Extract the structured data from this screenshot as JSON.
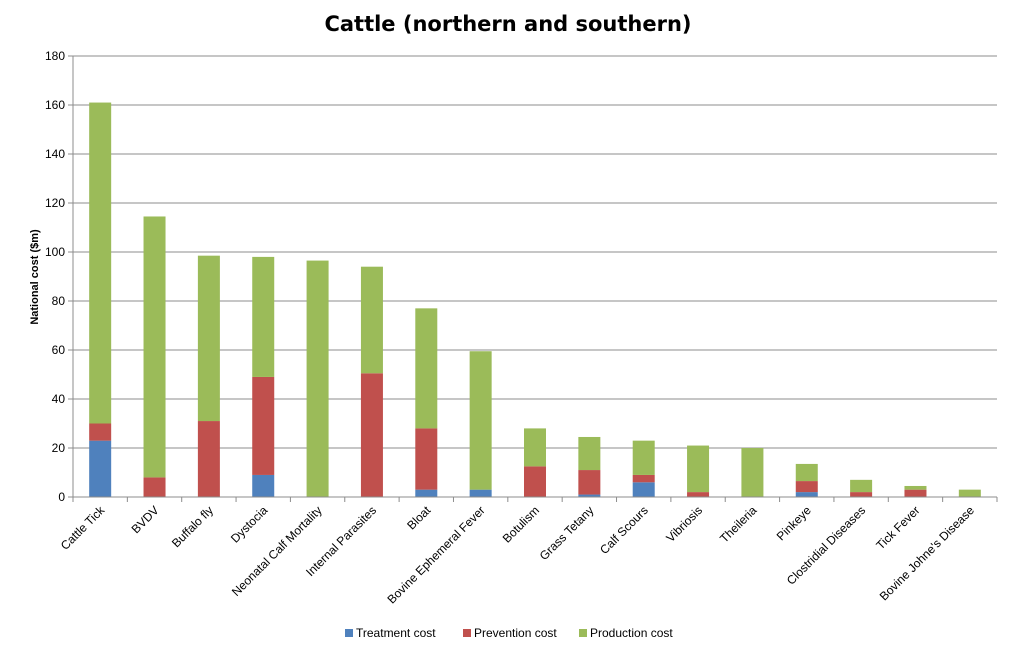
{
  "chart_data": {
    "type": "bar",
    "stacked": true,
    "title": "Cattle (northern and southern)",
    "xlabel": "",
    "ylabel": "National cost ($m)",
    "ylim": [
      0,
      180
    ],
    "yticks": [
      0,
      20,
      40,
      60,
      80,
      100,
      120,
      140,
      160,
      180
    ],
    "grid": true,
    "legend_position": "bottom",
    "categories": [
      "Cattle Tick",
      "BVDV",
      "Buffalo fly",
      "Dystocia",
      "Neonatal Calf Mortality",
      "Internal Parasites",
      "Bloat",
      "Bovine Ephemeral Fever",
      "Botulism",
      "Grass Tetany",
      "Calf Scours",
      "Vibriosis",
      "Theileria",
      "Pinkeye",
      "Clostridial Diseases",
      "Tick Fever",
      "Bovine Johne's Disease"
    ],
    "series": [
      {
        "name": "Treatment cost",
        "color": "#4f81bd",
        "values": [
          23,
          0,
          0,
          9,
          0,
          0,
          3,
          3,
          0,
          1,
          6,
          0,
          0,
          2,
          0,
          0,
          0
        ]
      },
      {
        "name": "Prevention cost",
        "color": "#c0504d",
        "values": [
          7,
          8,
          31,
          40,
          0,
          50.5,
          25,
          0,
          12.5,
          10,
          3,
          2,
          0,
          4.5,
          2,
          3,
          0
        ]
      },
      {
        "name": "Production cost",
        "color": "#9bbb59",
        "values": [
          131,
          106.5,
          67.5,
          49,
          96.5,
          43.5,
          49,
          56.5,
          15.5,
          13.5,
          14,
          19,
          20,
          7,
          5,
          1.5,
          3
        ]
      }
    ]
  }
}
